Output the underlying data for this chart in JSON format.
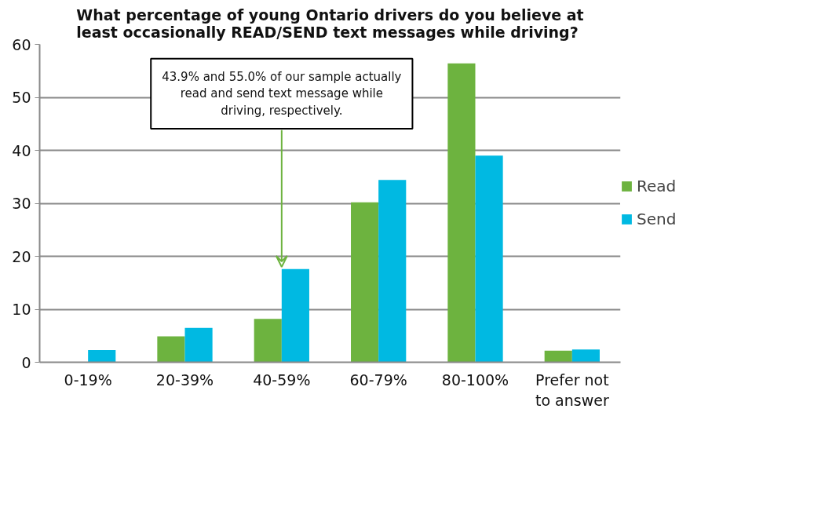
{
  "chart_data": {
    "type": "bar",
    "title": "What percentage of young Ontario drivers do you believe at least occasionally READ/SEND text messages while driving?",
    "categories": [
      "0-19%",
      "20-39%",
      "40-59%",
      "60-79%",
      "80-100%",
      "Prefer not to answer"
    ],
    "series": [
      {
        "name": "Read",
        "color": "#6db33f",
        "values": [
          0,
          4.9,
          8.2,
          30.2,
          56.4,
          2.2
        ]
      },
      {
        "name": "Send",
        "color": "#00b9e2",
        "values": [
          2.3,
          6.5,
          17.6,
          34.4,
          39.0,
          2.4
        ]
      }
    ],
    "ylim": [
      0,
      60
    ],
    "yticks": [
      0,
      10,
      20,
      30,
      40,
      50,
      60
    ],
    "grid": "y",
    "legend": "right",
    "annotations": [
      {
        "text": "43.9% and 55.0% of our sample actually read and send text message while driving, respectively.",
        "x": "40-59%",
        "y": 18
      }
    ]
  }
}
